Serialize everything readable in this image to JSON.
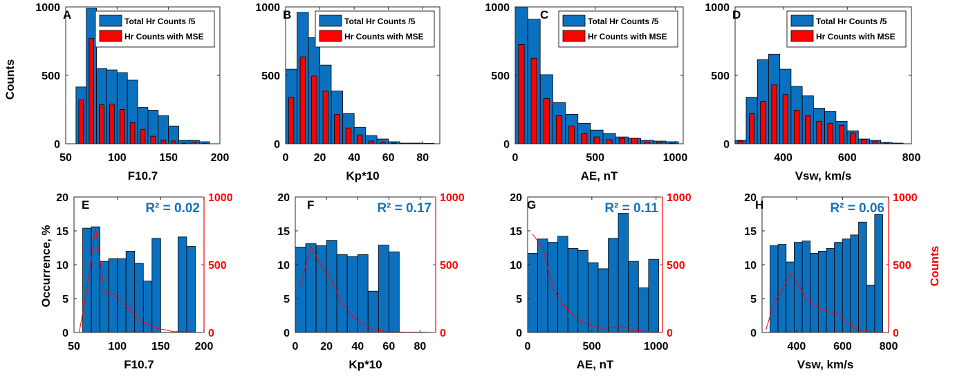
{
  "figure": {
    "ylabel_top": "Counts",
    "ylabel_bottom_left": "Occurrence, %",
    "ylabel_bottom_right": "Counts"
  },
  "colors": {
    "blue": "#0b70be",
    "red": "#ff0000",
    "red_axis": "#ff0000",
    "r2_blue": "#1572bd"
  },
  "chart_data": [
    {
      "type": "bar",
      "panel": "A",
      "row": "top",
      "xlabel": "F10.7",
      "xlim": [
        50,
        200
      ],
      "xticks": [
        50,
        100,
        150,
        200
      ],
      "ylim": [
        0,
        1000
      ],
      "yticks": [
        0,
        500,
        1000
      ],
      "legend": [
        "Total Hr Counts /5",
        "Hr Counts with MSE"
      ],
      "legend_position": "top-right",
      "bin_width": 10,
      "bin_centers": [
        65,
        75,
        85,
        95,
        105,
        115,
        125,
        135,
        145,
        155,
        165,
        175,
        185
      ],
      "series": [
        {
          "name": "Total Hr Counts /5",
          "values": [
            415,
            990,
            550,
            540,
            520,
            465,
            265,
            245,
            205,
            130,
            25,
            25,
            15
          ]
        },
        {
          "name": "Hr Counts with MSE",
          "values": [
            320,
            770,
            285,
            290,
            250,
            155,
            105,
            55,
            25,
            20,
            5,
            10,
            3
          ]
        }
      ]
    },
    {
      "type": "bar",
      "panel": "B",
      "row": "top",
      "xlabel": "Kp*10",
      "xlim": [
        0,
        90
      ],
      "xticks": [
        0,
        20,
        40,
        60,
        80
      ],
      "ylim": [
        0,
        1000
      ],
      "yticks": [
        0,
        500,
        1000
      ],
      "legend": [
        "Total Hr Counts /5",
        "Hr Counts with MSE"
      ],
      "legend_position": "top-right",
      "bin_width": 6.67,
      "bin_centers": [
        3.3,
        10,
        16.7,
        23.3,
        30,
        36.7,
        43.3,
        50,
        56.7,
        63.3,
        70,
        76.7,
        83.3
      ],
      "series": [
        {
          "name": "Total Hr Counts /5",
          "values": [
            545,
            960,
            775,
            575,
            385,
            220,
            120,
            60,
            35,
            15,
            5,
            5,
            3
          ]
        },
        {
          "name": "Hr Counts with MSE",
          "values": [
            340,
            635,
            495,
            385,
            215,
            115,
            65,
            20,
            10,
            5,
            2,
            2,
            1
          ]
        }
      ]
    },
    {
      "type": "bar",
      "panel": "C",
      "row": "top",
      "xlabel": "AE, nT",
      "xlim": [
        0,
        1050
      ],
      "xticks": [
        0,
        500,
        1000
      ],
      "ylim": [
        0,
        1000
      ],
      "yticks": [
        0,
        500,
        1000
      ],
      "legend": [
        "Total Hr Counts /5",
        "Hr Counts with MSE"
      ],
      "legend_position": "top-right",
      "bin_width": 78.5,
      "bin_centers": [
        39,
        117,
        196,
        274,
        353,
        431,
        510,
        588,
        667,
        745,
        824,
        902,
        981
      ],
      "series": [
        {
          "name": "Total Hr Counts /5",
          "values": [
            1000,
            910,
            505,
            300,
            215,
            150,
            100,
            75,
            50,
            40,
            25,
            20,
            15
          ]
        },
        {
          "name": "Hr Counts with MSE",
          "values": [
            725,
            625,
            330,
            205,
            130,
            75,
            50,
            30,
            40,
            40,
            12,
            10,
            5
          ]
        }
      ]
    },
    {
      "type": "bar",
      "panel": "D",
      "row": "top",
      "xlabel": "Vsw, km/s",
      "xlim": [
        250,
        800
      ],
      "xticks": [
        400,
        600,
        800
      ],
      "ylim": [
        0,
        1000
      ],
      "yticks": [
        0,
        500,
        1000
      ],
      "legend": [
        "Total Hr Counts /5",
        "Hr Counts with MSE"
      ],
      "legend_position": "top-right",
      "bin_width": 35,
      "bin_centers": [
        267,
        302,
        337,
        372,
        407,
        442,
        477,
        512,
        547,
        582,
        617,
        652,
        687,
        722,
        757
      ],
      "series": [
        {
          "name": "Total Hr Counts /5",
          "values": [
            25,
            340,
            615,
            655,
            545,
            420,
            350,
            260,
            235,
            165,
            95,
            35,
            25,
            10,
            5
          ]
        },
        {
          "name": "Hr Counts with MSE",
          "values": [
            20,
            220,
            310,
            430,
            360,
            245,
            205,
            165,
            150,
            135,
            80,
            30,
            15,
            5,
            3
          ]
        }
      ]
    },
    {
      "type": "bar",
      "panel": "E",
      "row": "bottom",
      "xlabel": "F10.7",
      "xlim": [
        50,
        200
      ],
      "xticks": [
        50,
        100,
        150,
        200
      ],
      "ylim": [
        0,
        20
      ],
      "yticks": [
        0,
        5,
        10,
        15,
        20
      ],
      "y2lim": [
        0,
        1000
      ],
      "y2ticks": [
        0,
        500,
        1000
      ],
      "annotation": "R² = 0.02",
      "bin_width": 10,
      "bin_centers": [
        65,
        75,
        85,
        95,
        105,
        115,
        125,
        135,
        145,
        155,
        165,
        175,
        185
      ],
      "series": [
        {
          "name": "Occurrence",
          "values": [
            15.4,
            15.6,
            10.5,
            10.9,
            10.9,
            12.0,
            10.2,
            7.6,
            13.9,
            0,
            0,
            14.1,
            12.7
          ]
        },
        {
          "name": "Counts",
          "type": "line",
          "x": [
            56,
            65,
            75,
            85,
            95,
            105,
            115,
            125,
            135,
            145,
            155,
            165,
            175,
            185
          ],
          "values": [
            0,
            320,
            770,
            300,
            285,
            235,
            160,
            95,
            60,
            30,
            20,
            5,
            10,
            3
          ]
        }
      ]
    },
    {
      "type": "bar",
      "panel": "F",
      "row": "bottom",
      "xlabel": "Kp*10",
      "xlim": [
        0,
        90
      ],
      "xticks": [
        0,
        20,
        40,
        60,
        80
      ],
      "ylim": [
        0,
        20
      ],
      "yticks": [
        0,
        5,
        10,
        15,
        20
      ],
      "y2lim": [
        0,
        1000
      ],
      "y2ticks": [
        0,
        500,
        1000
      ],
      "annotation": "R² = 0.17",
      "bin_width": 6.67,
      "bin_centers": [
        3.3,
        10,
        16.7,
        23.3,
        30,
        36.7,
        43.3,
        50,
        56.7,
        63.3
      ],
      "series": [
        {
          "name": "Occurrence",
          "values": [
            12.6,
            13.1,
            12.8,
            13.6,
            11.5,
            11.2,
            11.5,
            6.1,
            12.9,
            11.9
          ]
        },
        {
          "name": "Counts",
          "type": "line",
          "x": [
            3.3,
            10,
            16.7,
            23.3,
            30,
            36.7,
            43.3,
            50,
            56.7,
            63.3,
            70,
            76.7,
            83.3,
            88
          ],
          "values": [
            340,
            635,
            495,
            385,
            215,
            115,
            65,
            20,
            10,
            5,
            2,
            2,
            1,
            0
          ]
        }
      ]
    },
    {
      "type": "bar",
      "panel": "G",
      "row": "bottom",
      "xlabel": "AE, nT",
      "xlim": [
        0,
        1050
      ],
      "xticks": [
        0,
        500,
        1000
      ],
      "ylim": [
        0,
        20
      ],
      "yticks": [
        0,
        5,
        10,
        15,
        20
      ],
      "y2lim": [
        0,
        1000
      ],
      "y2ticks": [
        0,
        500,
        1000
      ],
      "annotation": "R² = 0.11",
      "bin_width": 78.5,
      "bin_centers": [
        39,
        117,
        196,
        274,
        353,
        431,
        510,
        588,
        667,
        745,
        824,
        902,
        981
      ],
      "series": [
        {
          "name": "Occurrence",
          "values": [
            11.7,
            13.8,
            13.3,
            14.2,
            12.4,
            12.1,
            10.3,
            9.4,
            13.9,
            17.6,
            10.5,
            6.6,
            10.8
          ]
        },
        {
          "name": "Counts",
          "type": "line",
          "x": [
            39,
            117,
            196,
            274,
            353,
            431,
            510,
            588,
            667,
            745,
            824,
            902,
            981
          ],
          "values": [
            725,
            625,
            330,
            205,
            130,
            75,
            50,
            30,
            40,
            40,
            12,
            10,
            5
          ]
        }
      ]
    },
    {
      "type": "bar",
      "panel": "H",
      "row": "bottom",
      "xlabel": "Vsw, km/s",
      "xlim": [
        250,
        800
      ],
      "xticks": [
        400,
        600,
        800
      ],
      "ylim": [
        0,
        20
      ],
      "yticks": [
        0,
        5,
        10,
        15,
        20
      ],
      "y2lim": [
        0,
        1000
      ],
      "y2ticks": [
        0,
        500,
        1000
      ],
      "annotation": "R² = 0.06",
      "bin_width": 35,
      "bin_centers": [
        267,
        302,
        337,
        372,
        407,
        442,
        477,
        512,
        547,
        582,
        617,
        652,
        687,
        722,
        757
      ],
      "series": [
        {
          "name": "Occurrence",
          "values": [
            0,
            12.8,
            13.0,
            10.4,
            13.3,
            13.5,
            11.7,
            12.0,
            12.4,
            13.3,
            13.8,
            14.4,
            16.3,
            7.0,
            17.4
          ]
        },
        {
          "name": "Counts",
          "type": "line",
          "x": [
            267,
            302,
            337,
            372,
            407,
            442,
            477,
            512,
            547,
            582,
            617,
            652,
            687,
            722,
            757
          ],
          "values": [
            20,
            220,
            310,
            430,
            360,
            245,
            205,
            165,
            150,
            135,
            80,
            30,
            15,
            5,
            3
          ]
        }
      ]
    }
  ]
}
